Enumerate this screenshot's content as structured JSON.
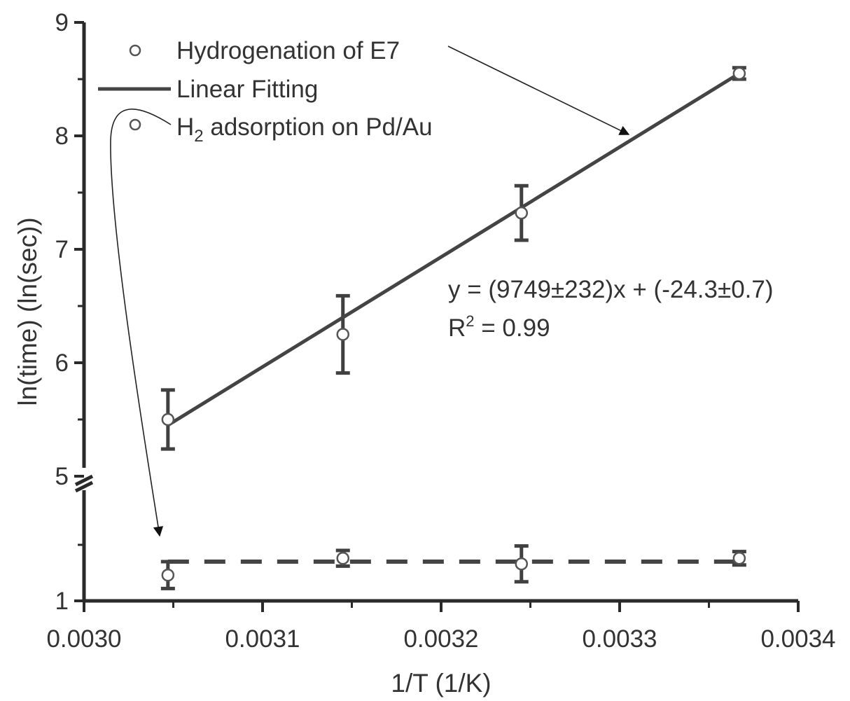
{
  "chart_data": {
    "type": "scatter",
    "xlabel": "1/T (1/K)",
    "ylabel": "ln(time) (ln(sec))",
    "xlim": [
      0.003,
      0.0034
    ],
    "ylim_upper": [
      5,
      9
    ],
    "ylim_lower": [
      1,
      2
    ],
    "axis_break": "y between 2 and 5",
    "x_ticks": [
      "0.0030",
      "0.0031",
      "0.0032",
      "0.0033",
      "0.0034"
    ],
    "y_ticks_upper": [
      "5",
      "6",
      "7",
      "8",
      "9"
    ],
    "y_ticks_lower": [
      "1"
    ],
    "grid": false,
    "legend_position": "top-left",
    "series": [
      {
        "name": "Hydrogenation of E7",
        "marker": "open-circle",
        "x": [
          0.003047,
          0.003145,
          0.003245,
          0.003367
        ],
        "y": [
          5.5,
          6.25,
          7.32,
          8.55
        ],
        "yerr": [
          0.26,
          0.34,
          0.24,
          0.05
        ]
      },
      {
        "name": "Linear Fitting",
        "line": "solid",
        "x": [
          0.003047,
          0.003367
        ],
        "y": [
          5.45,
          8.55
        ]
      },
      {
        "name": "H2 adsorption on Pd/Au",
        "marker": "open-circle",
        "x": [
          0.003047,
          0.003145,
          0.003245,
          0.003367
        ],
        "y": [
          1.23,
          1.38,
          1.33,
          1.38
        ],
        "yerr": [
          0.12,
          0.07,
          0.16,
          0.06
        ]
      },
      {
        "line": "dashed",
        "x": [
          0.003047,
          0.003367
        ],
        "y": [
          1.35,
          1.35
        ]
      }
    ],
    "legend": [
      {
        "label": "Hydrogenation of E7",
        "symbol": "open-circle"
      },
      {
        "label": "Linear Fitting",
        "symbol": "line"
      },
      {
        "label_main": "H",
        "label_sub": "2",
        "label_rest": " adsorption on Pd/Au",
        "symbol": "open-circle"
      }
    ],
    "annotations": {
      "equation": "y = (9749±232)x + (-24.3±0.7)",
      "r2_prefix": "R",
      "r2_sup": "2",
      "r2_value": " = 0.99"
    }
  }
}
